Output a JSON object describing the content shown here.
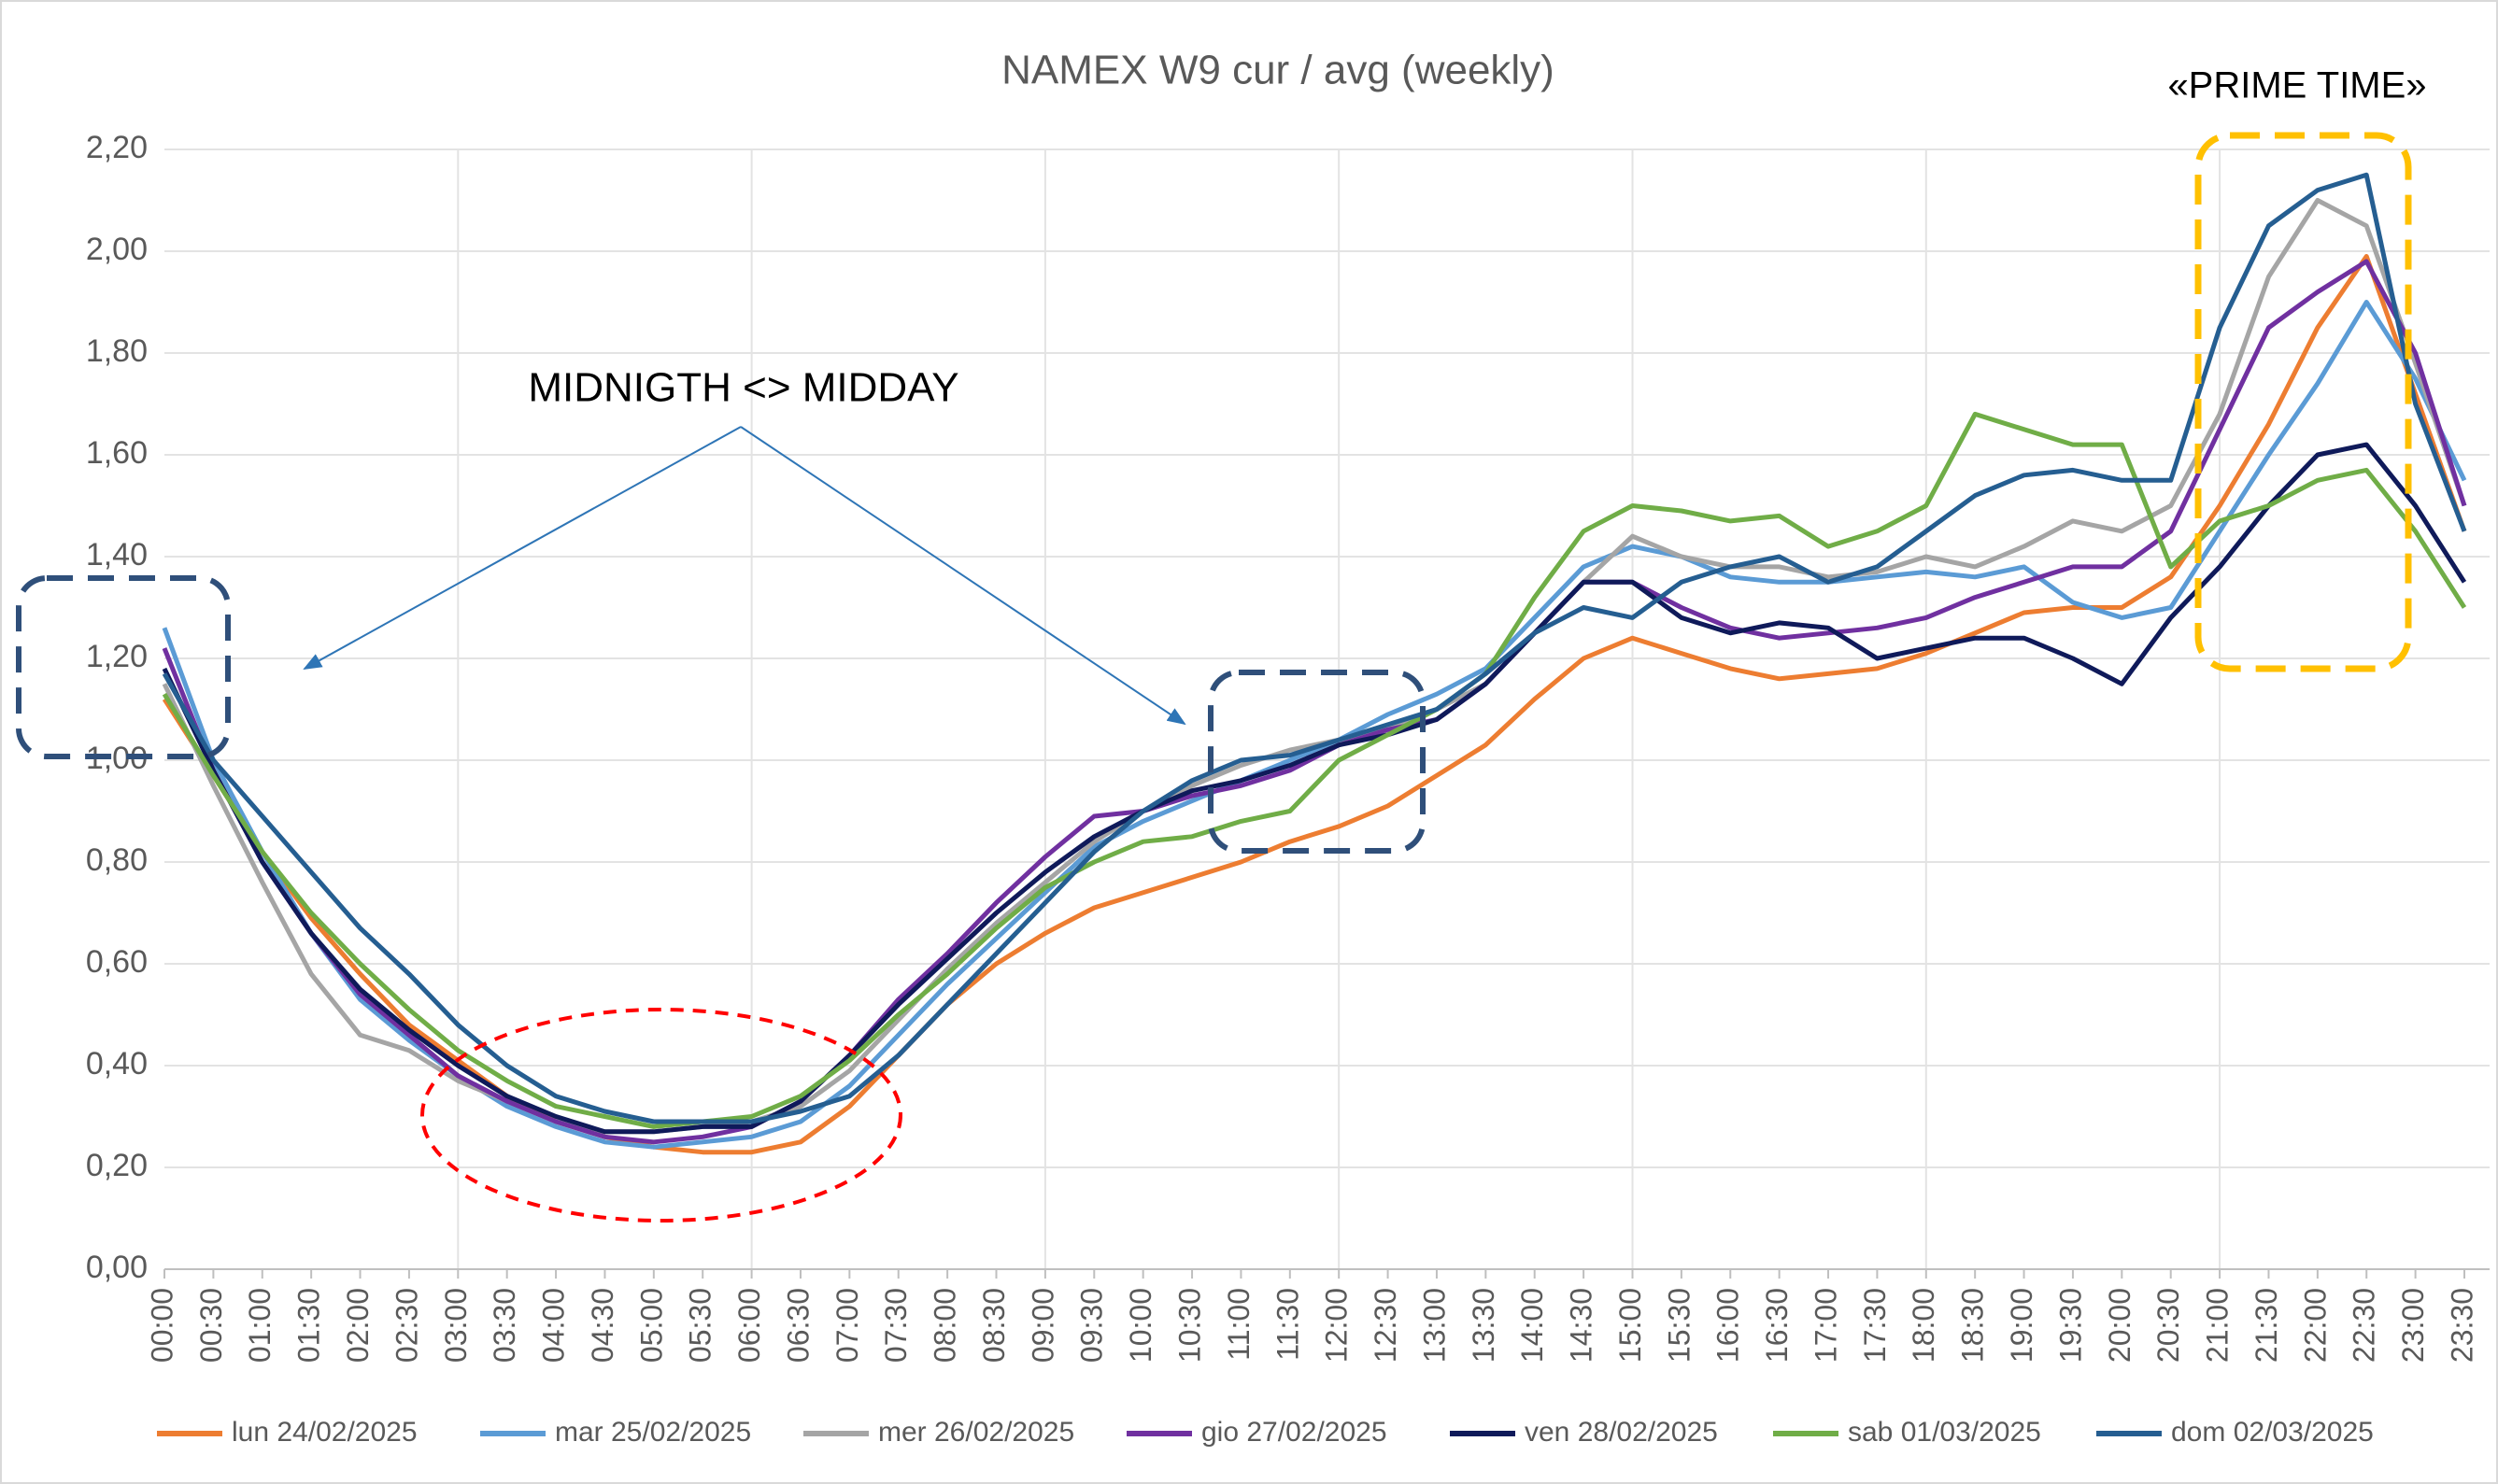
{
  "chart_data": {
    "type": "line",
    "title": "NAMEX W9 cur / avg (weekly)",
    "annotations": [
      "MIDNIGTH <> MIDDAY",
      "«PRIME TIME»"
    ],
    "categories": [
      "00:00",
      "00:30",
      "01:00",
      "01:30",
      "02:00",
      "02:30",
      "03:00",
      "03:30",
      "04:00",
      "04:30",
      "05:00",
      "05:30",
      "06:00",
      "06:30",
      "07:00",
      "07:30",
      "08:00",
      "08:30",
      "09:00",
      "09:30",
      "10:00",
      "10:30",
      "11:00",
      "11:30",
      "12:00",
      "12:30",
      "13:00",
      "13:30",
      "14:00",
      "14:30",
      "15:00",
      "15:30",
      "16:00",
      "16:30",
      "17:00",
      "17:30",
      "18:00",
      "18:30",
      "19:00",
      "19:30",
      "20:00",
      "20:30",
      "21:00",
      "21:30",
      "22:00",
      "22:30",
      "23:00",
      "23:30"
    ],
    "series": [
      {
        "name": "lun 24/02/2025",
        "color": "#ed7d31",
        "values": [
          1.12,
          0.97,
          0.82,
          0.69,
          0.58,
          0.48,
          0.41,
          0.34,
          0.29,
          0.26,
          0.24,
          0.23,
          0.23,
          0.25,
          0.32,
          0.42,
          0.52,
          0.6,
          0.66,
          0.71,
          0.74,
          0.77,
          0.8,
          0.84,
          0.87,
          0.91,
          0.97,
          1.03,
          1.12,
          1.2,
          1.24,
          1.21,
          1.18,
          1.16,
          1.17,
          1.18,
          1.21,
          1.25,
          1.29,
          1.3,
          1.3,
          1.36,
          1.5,
          1.66,
          1.85,
          1.99,
          1.72,
          1.45
        ]
      },
      {
        "name": "mar 25/02/2025",
        "color": "#5b9bd5",
        "values": [
          1.26,
          1.0,
          0.82,
          0.66,
          0.53,
          0.45,
          0.38,
          0.32,
          0.28,
          0.25,
          0.24,
          0.25,
          0.26,
          0.29,
          0.36,
          0.46,
          0.56,
          0.65,
          0.74,
          0.83,
          0.88,
          0.92,
          0.96,
          1.0,
          1.04,
          1.09,
          1.13,
          1.18,
          1.28,
          1.38,
          1.42,
          1.4,
          1.36,
          1.35,
          1.35,
          1.36,
          1.37,
          1.36,
          1.38,
          1.31,
          1.28,
          1.3,
          1.45,
          1.6,
          1.74,
          1.9,
          1.75,
          1.55
        ]
      },
      {
        "name": "mer 26/02/2025",
        "color": "#a5a5a5",
        "values": [
          1.15,
          0.95,
          0.76,
          0.58,
          0.46,
          0.43,
          0.37,
          0.33,
          0.29,
          0.27,
          0.27,
          0.28,
          0.29,
          0.32,
          0.39,
          0.49,
          0.59,
          0.68,
          0.76,
          0.84,
          0.9,
          0.95,
          0.99,
          1.02,
          1.04,
          1.06,
          1.1,
          1.15,
          1.25,
          1.35,
          1.44,
          1.4,
          1.38,
          1.38,
          1.36,
          1.37,
          1.4,
          1.38,
          1.42,
          1.47,
          1.45,
          1.5,
          1.68,
          1.95,
          2.1,
          2.05,
          1.78,
          1.5
        ]
      },
      {
        "name": "gio 27/02/2025",
        "color": "#7030a0",
        "values": [
          1.22,
          0.98,
          0.8,
          0.66,
          0.54,
          0.46,
          0.38,
          0.33,
          0.29,
          0.26,
          0.25,
          0.26,
          0.28,
          0.33,
          0.42,
          0.53,
          0.62,
          0.72,
          0.81,
          0.89,
          0.9,
          0.93,
          0.95,
          0.98,
          1.03,
          1.06,
          1.08,
          1.15,
          1.25,
          1.35,
          1.35,
          1.3,
          1.26,
          1.24,
          1.25,
          1.26,
          1.28,
          1.32,
          1.35,
          1.38,
          1.38,
          1.45,
          1.65,
          1.85,
          1.92,
          1.98,
          1.8,
          1.5
        ]
      },
      {
        "name": "ven 28/02/2025",
        "color": "#0f1a5a",
        "values": [
          1.18,
          0.98,
          0.8,
          0.66,
          0.55,
          0.47,
          0.4,
          0.34,
          0.3,
          0.27,
          0.27,
          0.28,
          0.28,
          0.33,
          0.42,
          0.52,
          0.61,
          0.7,
          0.78,
          0.85,
          0.9,
          0.94,
          0.96,
          0.99,
          1.03,
          1.05,
          1.08,
          1.15,
          1.25,
          1.35,
          1.35,
          1.28,
          1.25,
          1.27,
          1.26,
          1.2,
          1.22,
          1.24,
          1.24,
          1.2,
          1.15,
          1.28,
          1.38,
          1.5,
          1.6,
          1.62,
          1.5,
          1.35
        ]
      },
      {
        "name": "sab 01/03/2025",
        "color": "#70ad47",
        "values": [
          1.13,
          0.97,
          0.82,
          0.7,
          0.6,
          0.51,
          0.43,
          0.37,
          0.32,
          0.3,
          0.28,
          0.29,
          0.3,
          0.34,
          0.41,
          0.5,
          0.58,
          0.67,
          0.75,
          0.8,
          0.84,
          0.85,
          0.88,
          0.9,
          1.0,
          1.05,
          1.1,
          1.17,
          1.32,
          1.45,
          1.5,
          1.49,
          1.47,
          1.48,
          1.42,
          1.45,
          1.5,
          1.68,
          1.65,
          1.62,
          1.62,
          1.38,
          1.47,
          1.5,
          1.55,
          1.57,
          1.45,
          1.3
        ]
      },
      {
        "name": "dom 02/03/2025",
        "color": "#255e91",
        "values": [
          1.17,
          1.0,
          0.89,
          0.78,
          0.67,
          0.58,
          0.48,
          0.4,
          0.34,
          0.31,
          0.29,
          0.29,
          0.29,
          0.31,
          0.34,
          0.42,
          0.52,
          0.62,
          0.72,
          0.82,
          0.9,
          0.96,
          1.0,
          1.01,
          1.04,
          1.07,
          1.1,
          1.17,
          1.25,
          1.3,
          1.28,
          1.35,
          1.38,
          1.4,
          1.35,
          1.38,
          1.45,
          1.52,
          1.56,
          1.57,
          1.55,
          1.55,
          1.85,
          2.05,
          2.12,
          2.15,
          1.7,
          1.45
        ]
      }
    ],
    "ylim": [
      0,
      2.2
    ],
    "yticks": [
      {
        "value": 0,
        "label": "0,00"
      },
      {
        "value": 0.2,
        "label": "0,20"
      },
      {
        "value": 0.4,
        "label": "0,40"
      },
      {
        "value": 0.6,
        "label": "0,60"
      },
      {
        "value": 0.8,
        "label": "0,80"
      },
      {
        "value": 1,
        "label": "1,00"
      },
      {
        "value": 1.2,
        "label": "1,20"
      },
      {
        "value": 1.4,
        "label": "1,40"
      },
      {
        "value": 1.6,
        "label": "1,60"
      },
      {
        "value": 1.8,
        "label": "1,80"
      },
      {
        "value": 2,
        "label": "2,00"
      },
      {
        "value": 2.2,
        "label": "2,20"
      }
    ],
    "grid": true,
    "legend": "bottom"
  }
}
